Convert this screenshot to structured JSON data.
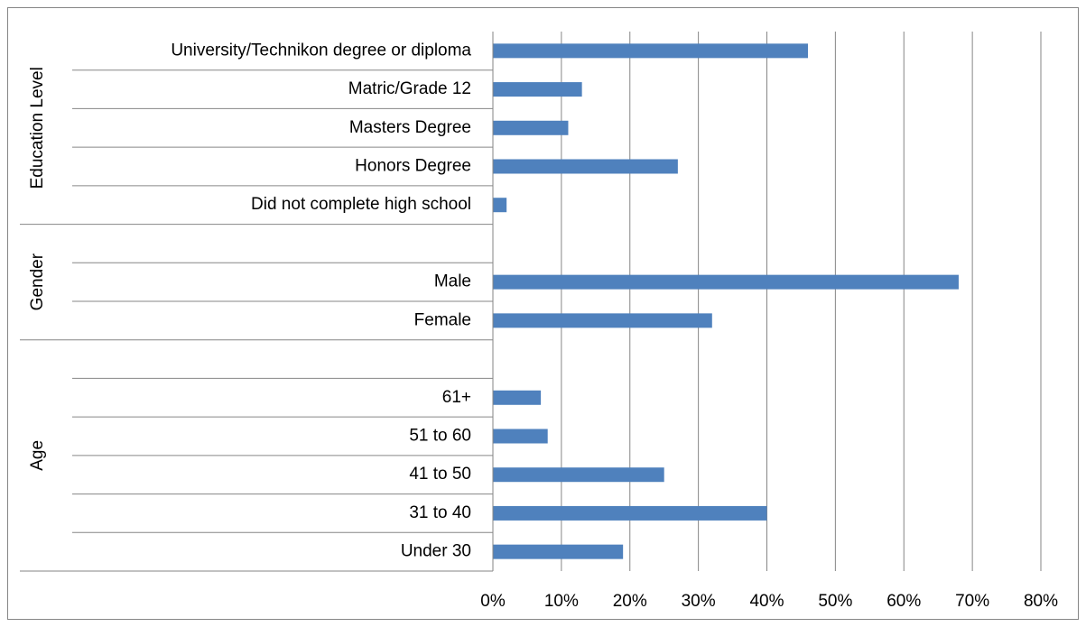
{
  "chart_data": {
    "type": "bar",
    "orientation": "horizontal",
    "color": "#4f81bd",
    "groups": [
      {
        "name": "Education Level",
        "categories": [
          "University/Technikon degree or diploma",
          "Matric/Grade 12",
          "Masters Degree",
          "Honors Degree",
          "Did not complete high school"
        ],
        "values": [
          46,
          13,
          11,
          27,
          2
        ]
      },
      {
        "name": "Gender",
        "categories": [
          null,
          "Male",
          "Female"
        ],
        "values": [
          null,
          68,
          32
        ]
      },
      {
        "name": "Age",
        "categories": [
          null,
          "61+",
          "51 to 60",
          "41 to 50",
          "31 to 40",
          "Under 30"
        ],
        "values": [
          null,
          7,
          8,
          25,
          40,
          19
        ]
      }
    ],
    "xlim": [
      0,
      80
    ],
    "xticks": [
      {
        "value": 0,
        "label": "0%"
      },
      {
        "value": 10,
        "label": "10%"
      },
      {
        "value": 20,
        "label": "20%"
      },
      {
        "value": 30,
        "label": "30%"
      },
      {
        "value": 40,
        "label": "40%"
      },
      {
        "value": 50,
        "label": "50%"
      },
      {
        "value": 60,
        "label": "60%"
      },
      {
        "value": 70,
        "label": "70%"
      },
      {
        "value": 80,
        "label": "80%"
      }
    ],
    "grid": true
  }
}
